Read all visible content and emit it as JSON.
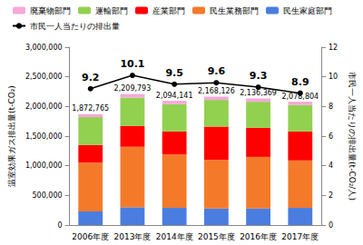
{
  "chart_data": {
    "type": "bar",
    "stacked": true,
    "grid": false,
    "legend": "top",
    "categories": [
      "2006年度",
      "2013年度",
      "2014年度",
      "2015年度",
      "2016年度",
      "2017年度"
    ],
    "y_label": "温室効果ガス排出量(t-CO₂)",
    "y2_label": "市民一人当たりの排出量(t-CO₂/人)",
    "ylim": [
      0,
      3000000
    ],
    "yticks": [
      0,
      {
        "value": 500000,
        "label": "500,000"
      },
      {
        "value": 1000000,
        "label": "1,000,000"
      },
      {
        "value": 1500000,
        "label": "1,500,000"
      },
      {
        "value": 2000000,
        "label": "2,000,000"
      },
      {
        "value": 2500000,
        "label": "2,500,000"
      },
      {
        "value": 3000000,
        "label": "3,000,000"
      }
    ],
    "y2lim": [
      0,
      12
    ],
    "y2ticks": [
      0,
      2,
      4,
      6,
      8,
      10,
      12
    ],
    "legend_order": [
      "廃棄物部門",
      "運輸部門",
      "産業部門",
      "民生業務部門",
      "民生家庭部門",
      "市民一人当たりの排出量"
    ],
    "series": [
      {
        "name": "民生家庭部門",
        "type": "bar",
        "color": "#4a7ddf",
        "values": [
          230000,
          300000,
          290000,
          280000,
          280000,
          290000
        ]
      },
      {
        "name": "民生業務部門",
        "type": "bar",
        "color": "#f47a2a",
        "values": [
          820000,
          1020000,
          900000,
          820000,
          870000,
          800000
        ]
      },
      {
        "name": "産業部門",
        "type": "bar",
        "color": "#ff0000",
        "values": [
          300000,
          350000,
          390000,
          560000,
          490000,
          490000
        ]
      },
      {
        "name": "運輸部門",
        "type": "bar",
        "color": "#92d050",
        "values": [
          470000,
          480000,
          460000,
          450000,
          440000,
          445000
        ]
      },
      {
        "name": "廃棄物部門",
        "type": "bar",
        "color": "#f7a8d8",
        "values": [
          50000,
          60000,
          55000,
          55000,
          55000,
          55000
        ]
      },
      {
        "name": "市民一人当たりの排出量",
        "type": "line",
        "axis": "y2",
        "color": "#000000",
        "marker": "circle",
        "line_style": "solid",
        "data_labels": true,
        "values": [
          9.2,
          10.1,
          9.5,
          9.6,
          9.3,
          8.9
        ]
      }
    ],
    "totals": {
      "values": [
        1872765,
        2209793,
        2094141,
        2168126,
        2136369,
        2078804
      ],
      "value_labels": [
        "1,872,765",
        "2,209,793",
        "2,094,141",
        "2,168,126",
        "2,136,369",
        "2,078,804"
      ]
    }
  }
}
